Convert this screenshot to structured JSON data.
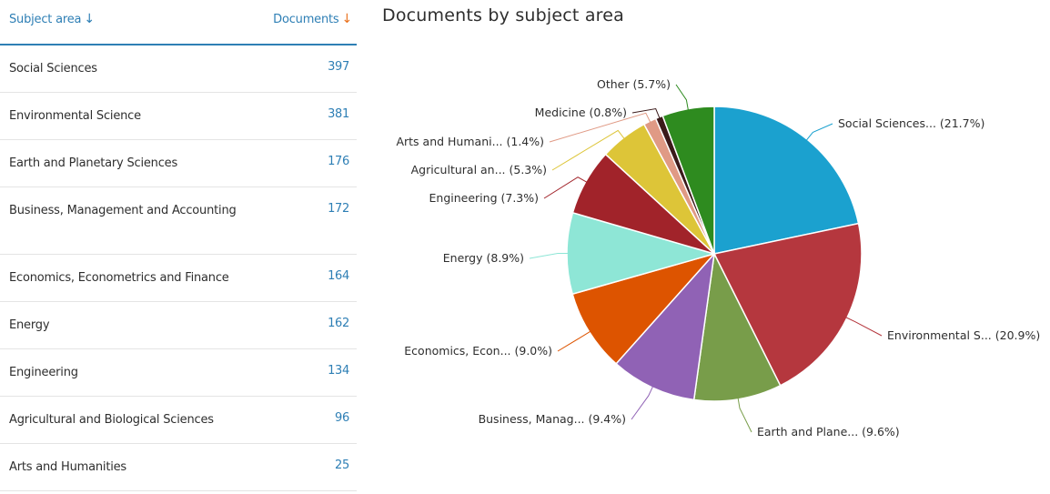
{
  "table": {
    "header": {
      "subject_label": "Subject area",
      "subject_arrow": "↓",
      "documents_label": "Documents",
      "documents_arrow": "↓"
    },
    "rows": [
      {
        "name": "Social Sciences",
        "count": "397"
      },
      {
        "name": "Environmental Science",
        "count": "381"
      },
      {
        "name": "Earth and Planetary Sciences",
        "count": "176"
      },
      {
        "name": "Business, Management and Accounting",
        "count": "172"
      },
      {
        "name": "Economics, Econometrics and Finance",
        "count": "164"
      },
      {
        "name": "Energy",
        "count": "162"
      },
      {
        "name": "Engineering",
        "count": "134"
      },
      {
        "name": "Agricultural and Biological Sciences",
        "count": "96"
      },
      {
        "name": "Arts and Humanities",
        "count": "25"
      }
    ]
  },
  "chart_data": {
    "type": "pie",
    "title": "Documents by subject area",
    "slices": [
      {
        "label": "Social Sciences... (21.7%)",
        "value": 21.7,
        "color": "#1ba1cf"
      },
      {
        "label": "Environmental S... (20.9%)",
        "value": 20.9,
        "color": "#b5373e"
      },
      {
        "label": "Earth and Plane... (9.6%)",
        "value": 9.6,
        "color": "#789d4a"
      },
      {
        "label": "Business, Manag... (9.4%)",
        "value": 9.4,
        "color": "#9062b5"
      },
      {
        "label": "Economics, Econ... (9.0%)",
        "value": 9.0,
        "color": "#dd5400"
      },
      {
        "label": "Energy (8.9%)",
        "value": 8.9,
        "color": "#8ee6d6"
      },
      {
        "label": "Engineering (7.3%)",
        "value": 7.3,
        "color": "#a1232a"
      },
      {
        "label": "Agricultural an... (5.3%)",
        "value": 5.3,
        "color": "#ddc538"
      },
      {
        "label": "Arts and Humani... (1.4%)",
        "value": 1.4,
        "color": "#e09a85"
      },
      {
        "label": "Medicine (0.8%)",
        "value": 0.8,
        "color": "#3b1a1a"
      },
      {
        "label": "Other (5.7%)",
        "value": 5.7,
        "color": "#2e8b1f"
      }
    ]
  }
}
